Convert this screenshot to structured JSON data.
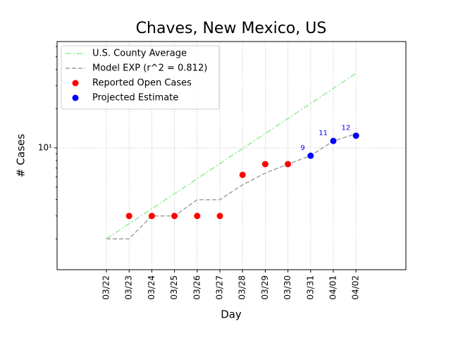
{
  "chart_data": {
    "type": "line",
    "title": "Chaves, New Mexico, US",
    "xlabel": "Day",
    "ylabel": "# Cases",
    "categories": [
      "03/22",
      "03/23",
      "03/24",
      "03/25",
      "03/26",
      "03/27",
      "03/28",
      "03/29",
      "03/30",
      "03/31",
      "04/01",
      "04/02"
    ],
    "ylim": [
      1.16,
      65.5
    ],
    "yticks": [
      {
        "value": 10,
        "label": "10¹"
      }
    ],
    "log_y": true,
    "grid": true,
    "legend": "upper left",
    "series": [
      {
        "name": "U.S. County Average",
        "color": "#90ee90",
        "style": "dashdot",
        "values": [
          2,
          2.61,
          3.41,
          4.44,
          5.8,
          7.57,
          9.88,
          12.9,
          16.8,
          21.9,
          28.6,
          37.4
        ]
      },
      {
        "name": "Model EXP (r^2 = 0.812)",
        "color": "#a0a0a0",
        "style": "dashed",
        "values": [
          2,
          2,
          3,
          3,
          4,
          4,
          5.2,
          6.4,
          7.5,
          8.7,
          11.3,
          12.8
        ]
      },
      {
        "name": "Reported Open Cases",
        "color": "#ff0000",
        "style": "marker",
        "values": [
          null,
          3,
          3,
          3,
          3,
          3,
          6.2,
          7.5,
          7.5,
          null,
          null,
          null
        ]
      },
      {
        "name": "Projected Estimate",
        "color": "#0000ff",
        "style": "marker",
        "values": [
          null,
          null,
          null,
          null,
          null,
          null,
          null,
          null,
          null,
          8.7,
          11.3,
          12.4
        ],
        "value_labels": [
          null,
          null,
          null,
          null,
          null,
          null,
          null,
          null,
          null,
          "9",
          "11",
          "12"
        ]
      }
    ]
  }
}
